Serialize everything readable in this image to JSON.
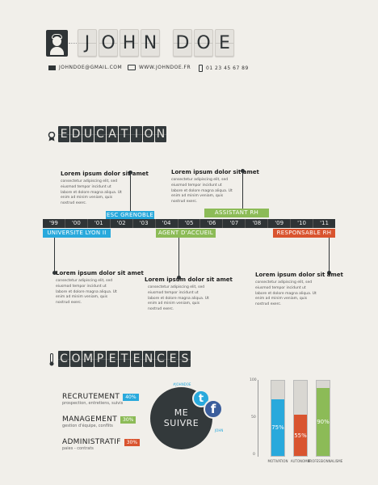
{
  "header": {
    "name_letters": [
      "J",
      "O",
      "H",
      "N",
      " ",
      "D",
      "O",
      "E"
    ],
    "email": "JOHNDOE@GMAIL.COM",
    "website": "WWW.JOHNDOE.FR",
    "phone": "01 23 45 67 89"
  },
  "education": {
    "heading_letters": [
      "E",
      "D",
      "U",
      "C",
      "A",
      "T",
      "I",
      "O",
      "N"
    ],
    "years": [
      "'99",
      "'00",
      "'01",
      "'02",
      "'03",
      "'04",
      "'05",
      "'06",
      "'07",
      "'08",
      "'09",
      "'10",
      "'11"
    ],
    "top_tags": [
      {
        "label": "ESC GRENOBLE",
        "color": "#29a9dc"
      },
      {
        "label": "ASSISTANT RH",
        "color": "#8cbb57"
      }
    ],
    "bottom_tags": [
      {
        "label": "UNIVERSITE LYON II",
        "color": "#29a9dc"
      },
      {
        "label": "AGENT D'ACCUEIL",
        "color": "#8cbb57"
      },
      {
        "label": "RESPONSABLE RH",
        "color": "#d9542f"
      }
    ],
    "events": [
      {
        "title": "Lorem ipsum dolor sit amet",
        "body": "consectetur adipiscing elit, sed eiusmod tempor incidunt ut labore et dolore magna aliqua. Ut enim ad minim veniam, quis nostrud exerc."
      },
      {
        "title": "Lorem ipsum dolor sit amet",
        "body": "consectetur adipiscing elit, sed eiusmod tempor incidunt ut labore et dolore magna aliqua. Ut enim ad minim veniam, quis nostrud exerc."
      },
      {
        "title": "Lorem ipsum dolor sit amet",
        "body": "consectetur adipiscing elit, sed eiusmod tempor incidunt ut labore et dolore magna aliqua. Ut enim ad minim veniam, quis nostrud exerc."
      },
      {
        "title": "Lorem ipsum dolor sit amet",
        "body": "consectetur adipiscing elit, sed eiusmod tempor incidunt ut labore et dolore magna aliqua. Ut enim ad minim veniam, quis nostrud exerc."
      },
      {
        "title": "Lorem ipsum dolor sit amet",
        "body": "consectetur adipiscing elit, sed eiusmod tempor incidunt ut labore et dolore magna aliqua. Ut enim ad minim veniam, quis nostrud exerc."
      }
    ]
  },
  "competences": {
    "heading_letters": [
      "C",
      "O",
      "M",
      "P",
      "E",
      "T",
      "E",
      "N",
      "C",
      "E",
      "S"
    ],
    "skills": [
      {
        "name": "RECRUTEMENT",
        "pct": "40%",
        "color": "#29a9dc",
        "sub": "prospection, entretiens, suivis"
      },
      {
        "name": "MANAGEMENT",
        "pct": "30%",
        "color": "#8cbb57",
        "sub": "gestion d'équipe, conflits"
      },
      {
        "name": "ADMINISTRATIF",
        "pct": "30%",
        "color": "#d9542f",
        "sub": "paies - contrats"
      }
    ],
    "social": {
      "line1": "ME",
      "line2": "SUIVRE",
      "twitter_glyph": "t",
      "facebook_glyph": "f",
      "twitter_handle": "#JOHNDOE",
      "facebook_handle": "JOHN"
    },
    "chart_data": {
      "type": "bar",
      "categories": [
        "MOTIVATION",
        "AUTONOMIE",
        "PROFESSIONNALISME"
      ],
      "values": [
        75,
        55,
        90
      ],
      "value_labels": [
        "75%",
        "55%",
        "90%"
      ],
      "colors": [
        "#29a9dc",
        "#d9542f",
        "#8cbb57"
      ],
      "ylim": [
        0,
        100
      ],
      "yticks": [
        "100",
        "50",
        "0"
      ]
    }
  }
}
